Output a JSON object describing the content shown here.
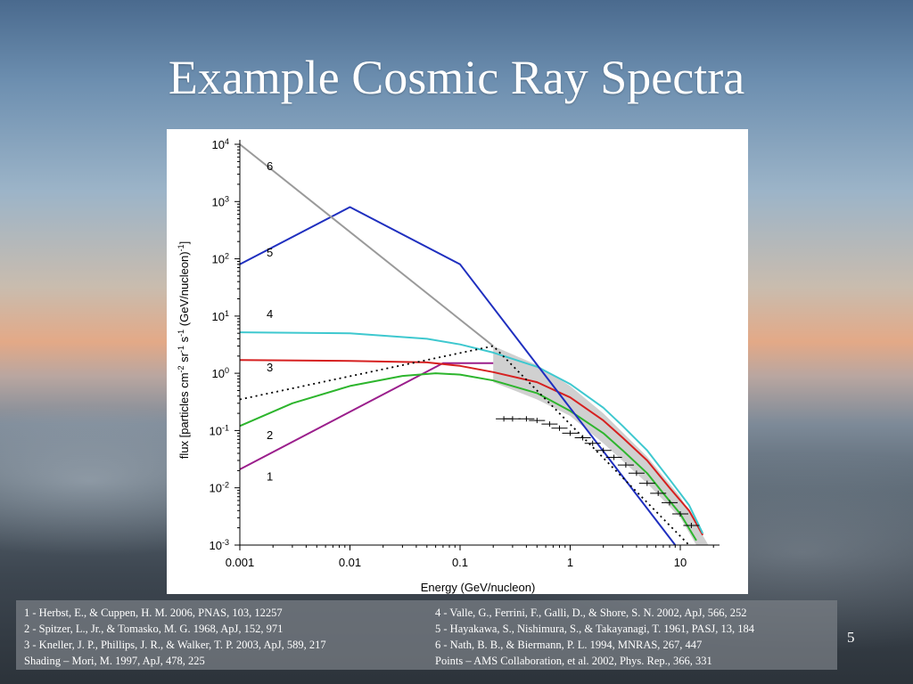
{
  "slide": {
    "title": "Example Cosmic Ray Spectra",
    "page_number": "5"
  },
  "references": {
    "left": [
      "1 - Herbst, E., & Cuppen, H. M. 2006, PNAS, 103, 12257",
      "2 - Spitzer, L., Jr., & Tomasko, M. G. 1968, ApJ, 152, 971",
      "3 - Kneller, J. P., Phillips, J. R., & Walker, T. P. 2003, ApJ, 589, 217",
      "Shading – Mori, M. 1997, ApJ, 478, 225"
    ],
    "right": [
      "4 - Valle, G., Ferrini, F., Galli, D., & Shore, S. N. 2002, ApJ, 566, 252",
      "5 - Hayakawa, S., Nishimura, S., & Takayanagi, T. 1961, PASJ, 13, 184",
      "6 - Nath, B. B., & Biermann, P. L. 1994, MNRAS, 267, 447",
      "Points – AMS Collaboration, et al. 2002, Phys. Rep., 366, 331"
    ]
  },
  "chart_data": {
    "type": "line",
    "xlabel": "Energy (GeV/nucleon)",
    "ylabel": "flux [particles cm^-2 sr^-1 s^-1 (GeV/nucleon)^-1]",
    "xscale": "log",
    "yscale": "log",
    "xlim": [
      0.001,
      20
    ],
    "ylim": [
      0.001,
      10000
    ],
    "xticks": [
      {
        "value": 0.001,
        "label": "0.001"
      },
      {
        "value": 0.01,
        "label": "0.01"
      },
      {
        "value": 0.1,
        "label": "0.1"
      },
      {
        "value": 1,
        "label": "1"
      },
      {
        "value": 10,
        "label": "10"
      }
    ],
    "yticks": [
      {
        "value": 0.001,
        "base": "10",
        "exp": "-3"
      },
      {
        "value": 0.01,
        "base": "10",
        "exp": "-2"
      },
      {
        "value": 0.1,
        "base": "10",
        "exp": "-1"
      },
      {
        "value": 1,
        "base": "10",
        "exp": "0"
      },
      {
        "value": 10,
        "base": "10",
        "exp": "1"
      },
      {
        "value": 100,
        "base": "10",
        "exp": "2"
      },
      {
        "value": 1000,
        "base": "10",
        "exp": "3"
      },
      {
        "value": 10000,
        "base": "10",
        "exp": "4"
      }
    ],
    "grid": false,
    "series": [
      {
        "label": "1",
        "color": "#9b1f8c",
        "x": [
          0.001,
          0.07,
          0.2
        ],
        "y": [
          0.021,
          1.5,
          1.5
        ]
      },
      {
        "label": "2",
        "color": "#2db52d",
        "x": [
          0.001,
          0.003,
          0.01,
          0.03,
          0.06,
          0.1,
          0.2,
          0.5,
          1,
          2,
          3,
          5,
          7,
          10,
          14
        ],
        "y": [
          0.12,
          0.3,
          0.6,
          0.9,
          1.0,
          0.95,
          0.75,
          0.45,
          0.22,
          0.09,
          0.045,
          0.018,
          0.008,
          0.0035,
          0.0012
        ]
      },
      {
        "label": "3",
        "color": "#d62020",
        "x": [
          0.001,
          0.01,
          0.05,
          0.1,
          0.2,
          0.5,
          1,
          2,
          3,
          5,
          8,
          12,
          16
        ],
        "y": [
          1.7,
          1.65,
          1.55,
          1.35,
          1.05,
          0.7,
          0.38,
          0.15,
          0.075,
          0.03,
          0.01,
          0.004,
          0.0015
        ]
      },
      {
        "label": "4",
        "color": "#3ec8cf",
        "x": [
          0.001,
          0.01,
          0.05,
          0.1,
          0.2,
          0.5,
          1,
          2,
          3,
          5,
          8,
          12,
          16
        ],
        "y": [
          5.2,
          5.0,
          4.0,
          3.2,
          2.3,
          1.3,
          0.65,
          0.25,
          0.12,
          0.045,
          0.014,
          0.005,
          0.0016
        ]
      },
      {
        "label": "5",
        "color": "#1f2fbf",
        "x": [
          0.001,
          0.01,
          0.1,
          9
        ],
        "y": [
          80,
          800,
          80,
          0.001
        ]
      },
      {
        "label": "6",
        "color": "#9a9a9a",
        "x": [
          0.001,
          0.2
        ],
        "y": [
          10000,
          3
        ]
      }
    ],
    "dotted_series": {
      "color": "#000000",
      "x": [
        0.001,
        0.2,
        12
      ],
      "y": [
        0.35,
        3,
        0.001
      ]
    },
    "shading": {
      "color": "#c8c8c8",
      "upper_x": [
        0.2,
        0.5,
        1,
        2,
        5,
        10,
        18
      ],
      "upper_y": [
        3,
        1.4,
        0.6,
        0.2,
        0.035,
        0.007,
        0.001
      ],
      "lower_x": [
        0.2,
        0.5,
        1,
        2,
        5,
        10,
        14
      ],
      "lower_y": [
        0.7,
        0.35,
        0.18,
        0.06,
        0.012,
        0.003,
        0.001
      ]
    },
    "points": {
      "color": "#000000",
      "x": [
        0.25,
        0.3,
        0.4,
        0.5,
        0.65,
        0.8,
        1.0,
        1.3,
        1.6,
        2.0,
        2.5,
        3.2,
        4.0,
        5.0,
        6.3,
        8.0,
        10.0,
        12.6
      ],
      "y": [
        0.16,
        0.16,
        0.16,
        0.15,
        0.13,
        0.11,
        0.09,
        0.075,
        0.06,
        0.045,
        0.034,
        0.025,
        0.018,
        0.012,
        0.008,
        0.0055,
        0.0035,
        0.0022
      ]
    }
  }
}
